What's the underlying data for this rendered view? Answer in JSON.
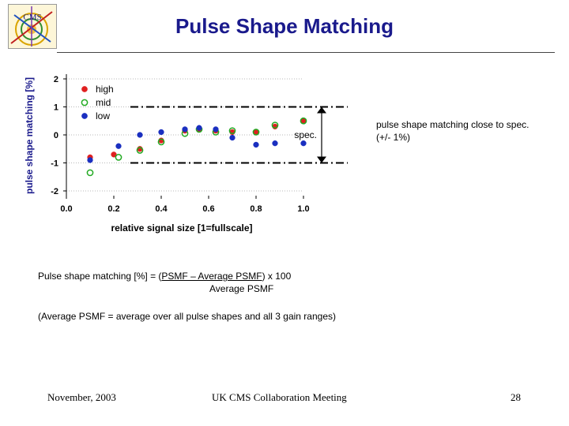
{
  "title": "Pulse Shape Matching",
  "logo": {
    "text": "CMS"
  },
  "chart_data": {
    "type": "scatter",
    "xlabel": "relative signal size [1=fullscale]",
    "ylabel": "pulse shape matching [%]",
    "xlim": [
      0.0,
      1.0
    ],
    "ylim": [
      -2,
      2
    ],
    "xticks": [
      "0.0",
      "0.2",
      "0.4",
      "0.6",
      "0.8",
      "1.0"
    ],
    "yticks": [
      "2",
      "1",
      "0",
      "-1",
      "-2"
    ],
    "legend_position": "top-left",
    "grid": "horizontal dotted",
    "series": [
      {
        "name": "high",
        "color": "#e02020",
        "marker": "filled-circle",
        "x": [
          0.1,
          0.2,
          0.31,
          0.4,
          0.5,
          0.56,
          0.63,
          0.7,
          0.8,
          0.88,
          1.0
        ],
        "y": [
          -0.8,
          -0.7,
          -0.5,
          -0.2,
          0.15,
          0.2,
          0.15,
          0.1,
          0.1,
          0.3,
          0.5
        ]
      },
      {
        "name": "mid",
        "color": "#22aa22",
        "marker": "open-circle",
        "x": [
          0.1,
          0.22,
          0.31,
          0.4,
          0.5,
          0.56,
          0.63,
          0.7,
          0.8,
          0.88,
          1.0
        ],
        "y": [
          -1.35,
          -0.8,
          -0.55,
          -0.25,
          0.05,
          0.2,
          0.1,
          0.15,
          0.1,
          0.35,
          0.5
        ]
      },
      {
        "name": "low",
        "color": "#1a2fc0",
        "marker": "filled-circle",
        "x": [
          0.1,
          0.22,
          0.31,
          0.4,
          0.5,
          0.56,
          0.63,
          0.7,
          0.8,
          0.88,
          1.0
        ],
        "y": [
          -0.9,
          -0.4,
          0.0,
          0.1,
          0.2,
          0.25,
          0.2,
          -0.1,
          -0.35,
          -0.3,
          -0.3
        ]
      }
    ],
    "spec_band": {
      "upper": 1,
      "lower": -1,
      "label": "spec."
    }
  },
  "note": "pulse shape matching close to spec. (+/- 1%)",
  "formula": {
    "lhs": "Pulse shape matching [%] = (",
    "numerator": "PSMF – Average PSMF",
    "rhs": ") x 100",
    "denominator": "Average PSMF"
  },
  "average_note": "(Average PSMF = average over all pulse shapes and all 3 gain ranges)",
  "footer": {
    "date": "November, 2003",
    "meeting": "UK CMS Collaboration Meeting",
    "page": "28"
  }
}
